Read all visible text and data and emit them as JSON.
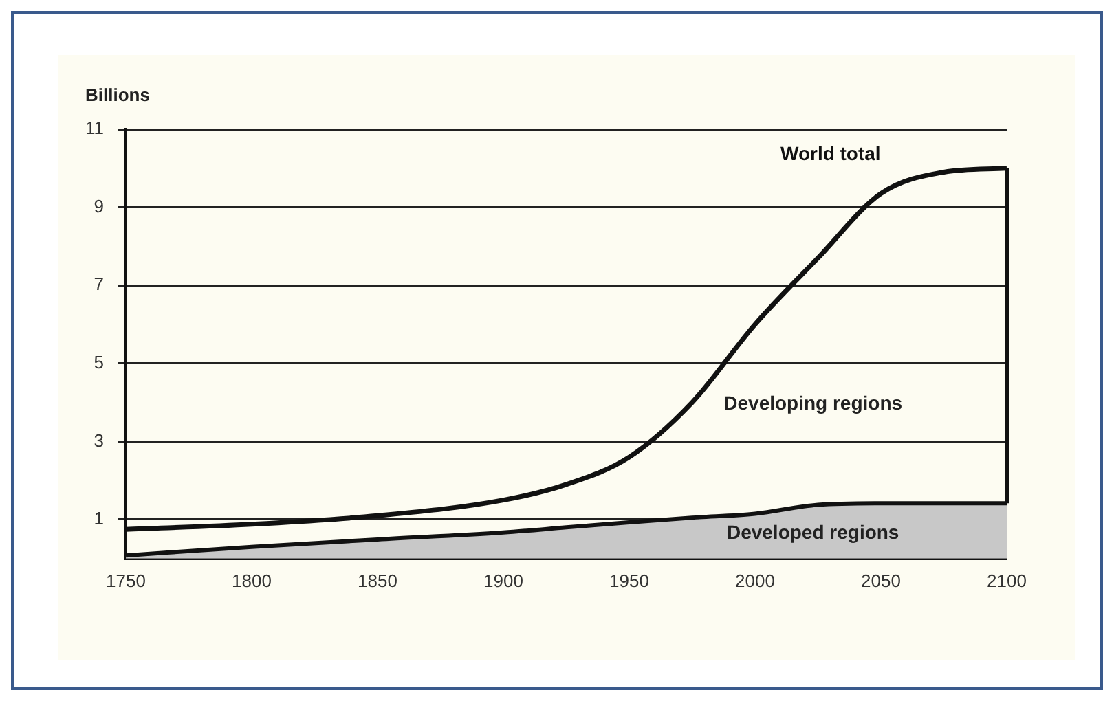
{
  "chart_data": {
    "type": "area",
    "ylabel": "Billions",
    "x": [
      1750,
      1800,
      1850,
      1900,
      1925,
      1950,
      1975,
      2000,
      2025,
      2050,
      2075,
      2100
    ],
    "series": [
      {
        "name": "Developed regions",
        "color": "#c8c8c8",
        "values": [
          0.08,
          0.3,
          0.49,
          0.67,
          0.8,
          0.93,
          1.05,
          1.15,
          1.38,
          1.42,
          1.42,
          1.42
        ]
      },
      {
        "name": "World total",
        "type": "line",
        "color": "#111111",
        "values": [
          0.75,
          0.88,
          1.1,
          1.5,
          1.9,
          2.6,
          4.0,
          6.0,
          7.7,
          9.35,
          9.9,
          10.0
        ]
      }
    ],
    "annotations": [
      "Developing regions"
    ],
    "xlim": [
      1750,
      2100
    ],
    "xticks": [
      1750,
      1800,
      1850,
      1900,
      1950,
      2000,
      2050,
      2100
    ],
    "ylim": [
      0,
      11
    ],
    "yticks": [
      1,
      3,
      5,
      7,
      9,
      11
    ],
    "grid": "y",
    "legend": false,
    "marker": "none",
    "line_style": "solid"
  }
}
